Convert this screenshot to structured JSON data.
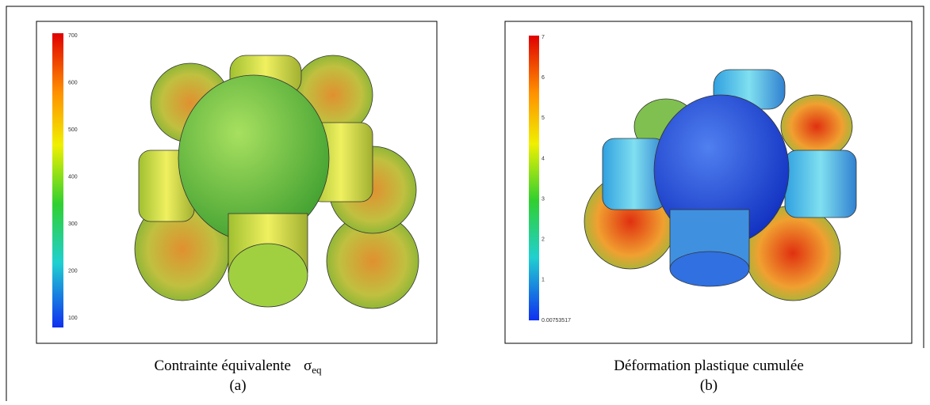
{
  "panels": [
    {
      "colorbar_ticks": [
        700,
        600,
        500,
        400,
        300,
        200,
        100
      ],
      "caption": "Contrainte équivalente",
      "symbol": "σ",
      "subscript": "eq",
      "label": "(a)"
    },
    {
      "colorbar_ticks": [
        7,
        6,
        5,
        4,
        3,
        2,
        1,
        0.00753517
      ],
      "caption": "Déformation plastique cumulée",
      "label": "(b)"
    }
  ]
}
